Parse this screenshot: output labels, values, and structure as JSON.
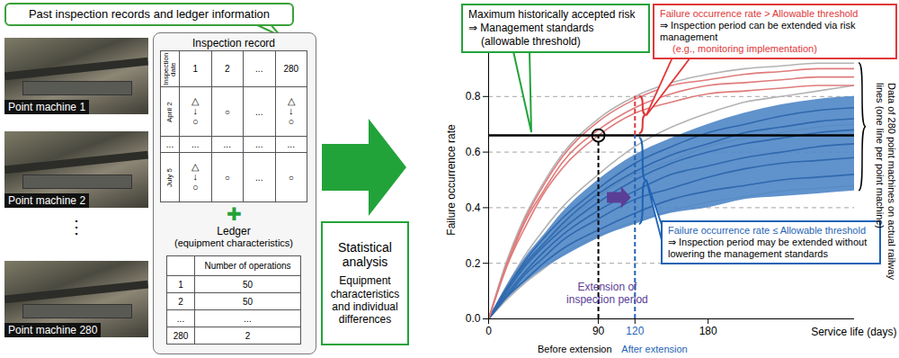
{
  "left_panel": {
    "callout": "Past inspection records and ledger information",
    "photos": [
      "Point machine 1",
      "Point machine 2",
      "Point machine 280"
    ],
    "ellipsis": "⋮",
    "inspection_record": {
      "title": "Inspection record",
      "header": [
        "Inspection date",
        1,
        2,
        "...",
        280
      ],
      "rows": [
        [
          "April 2",
          "△↓○",
          "○",
          "...",
          "△↓○"
        ],
        [
          "...",
          "...",
          "...",
          "...",
          "..."
        ],
        [
          "July 5",
          "△↓○",
          "○",
          "...",
          "○"
        ]
      ]
    },
    "plus": "✚",
    "ledger": {
      "title": "Ledger",
      "subtitle": "(equipment characteristics)",
      "header": [
        "Number of operations"
      ],
      "rows": [
        [
          1,
          50
        ],
        [
          2,
          50
        ],
        [
          "...",
          "..."
        ],
        [
          280,
          2
        ]
      ]
    }
  },
  "analysis_box": {
    "title": "Statistical analysis",
    "text": "Equipment characteristics and individual differences"
  },
  "chart_data": {
    "type": "line",
    "xlabel": "Service life (days)",
    "ylabel": "Failure occurrence rate",
    "x": [
      0,
      15,
      30,
      45,
      60,
      90,
      120,
      150,
      180,
      210,
      240,
      270,
      300
    ],
    "xlim": [
      0,
      300
    ],
    "xticks": [
      0,
      90,
      120,
      180
    ],
    "ylim": [
      0,
      1
    ],
    "yticks": [
      {
        "value": 0,
        "label": "0.0"
      },
      0.2,
      0.4,
      0.6,
      0.8
    ],
    "grid": true,
    "series": [
      {
        "color": "#b3b3b3",
        "values": [
          0,
          0.21,
          0.37,
          0.49,
          0.59,
          0.72,
          0.8,
          0.85,
          0.88,
          0.9,
          0.91,
          0.92,
          0.92
        ]
      },
      {
        "color": "#b3b3b3",
        "values": [
          0,
          0.12,
          0.23,
          0.32,
          0.4,
          0.52,
          0.62,
          0.69,
          0.74,
          0.78,
          0.8,
          0.82,
          0.84
        ]
      },
      {
        "color": "#b3b3b3",
        "values": [
          0,
          0.1,
          0.19,
          0.27,
          0.33,
          0.44,
          0.52,
          0.57,
          0.62,
          0.65,
          0.67,
          0.69,
          0.7
        ]
      },
      {
        "color": "#b3b3b3",
        "values": [
          0,
          0.07,
          0.13,
          0.18,
          0.23,
          0.3,
          0.35,
          0.39,
          0.42,
          0.44,
          0.46,
          0.47,
          0.48
        ]
      },
      {
        "type": "area",
        "color": "#4f86c6",
        "lower": [
          0,
          0.07,
          0.13,
          0.18,
          0.22,
          0.29,
          0.34,
          0.38,
          0.4,
          0.43,
          0.44,
          0.45,
          0.46
        ],
        "values": [
          0,
          0.12,
          0.22,
          0.3,
          0.38,
          0.5,
          0.59,
          0.65,
          0.7,
          0.74,
          0.77,
          0.79,
          0.8
        ]
      },
      {
        "color": "#2f69ad",
        "values": [
          0,
          0.08,
          0.14,
          0.2,
          0.25,
          0.32,
          0.38,
          0.43,
          0.46,
          0.48,
          0.5,
          0.51,
          0.52
        ]
      },
      {
        "color": "#2f69ad",
        "values": [
          0,
          0.08,
          0.16,
          0.22,
          0.28,
          0.36,
          0.43,
          0.47,
          0.51,
          0.54,
          0.56,
          0.57,
          0.58
        ]
      },
      {
        "color": "#2f69ad",
        "values": [
          0,
          0.09,
          0.17,
          0.24,
          0.3,
          0.39,
          0.46,
          0.52,
          0.55,
          0.58,
          0.6,
          0.62,
          0.63
        ]
      },
      {
        "color": "#2f69ad",
        "values": [
          0,
          0.1,
          0.19,
          0.26,
          0.32,
          0.42,
          0.5,
          0.56,
          0.6,
          0.63,
          0.65,
          0.67,
          0.68
        ]
      },
      {
        "color": "#2f69ad",
        "values": [
          0,
          0.11,
          0.2,
          0.27,
          0.34,
          0.45,
          0.53,
          0.59,
          0.63,
          0.67,
          0.69,
          0.71,
          0.72
        ]
      },
      {
        "color": "#2f69ad",
        "values": [
          0,
          0.11,
          0.21,
          0.29,
          0.36,
          0.47,
          0.56,
          0.62,
          0.67,
          0.7,
          0.73,
          0.75,
          0.76
        ]
      },
      {
        "color": "#e07b7b",
        "values": [
          0,
          0.19,
          0.33,
          0.45,
          0.54,
          0.66,
          0.74,
          0.78,
          0.81,
          0.82,
          0.83,
          0.84,
          0.84
        ]
      },
      {
        "color": "#e07b7b",
        "values": [
          0,
          0.19,
          0.35,
          0.46,
          0.56,
          0.68,
          0.76,
          0.81,
          0.84,
          0.85,
          0.86,
          0.87,
          0.87
        ]
      },
      {
        "color": "#e07b7b",
        "values": [
          0,
          0.2,
          0.36,
          0.48,
          0.58,
          0.71,
          0.79,
          0.84,
          0.86,
          0.88,
          0.89,
          0.9,
          0.9
        ]
      }
    ],
    "threshold": 0.66,
    "extension": {
      "from": 90,
      "to": 120,
      "text": [
        "Extension of",
        "inspection period"
      ],
      "from_label": "Before extension",
      "to_label": "After extension"
    },
    "annotations": {
      "threshold": [
        "Maximum historically accepted risk",
        "⇒ Management standards",
        "(allowable threshold)"
      ],
      "above": [
        "Failure occurrence rate > Allowable threshold",
        "⇒ Inspection period can be extended via risk management",
        "(e.g., monitoring implementation)"
      ],
      "below": [
        "Failure occurrence rate ≤ Allowable threshold",
        "⇒ Inspection period may be extended without lowering the management standards"
      ],
      "data_note": "Data of 280 point machines on actual railway lines (one line per point machine)"
    }
  }
}
